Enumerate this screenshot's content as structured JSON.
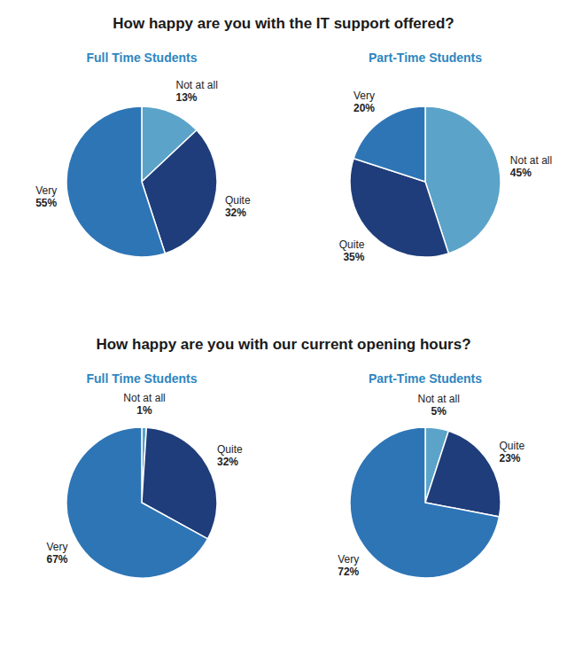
{
  "chart_data": [
    {
      "type": "pie",
      "title": "How happy are you with the IT support offered?",
      "subtitle": "Full Time Students",
      "categories": [
        "Not at all",
        "Quite",
        "Very"
      ],
      "values": [
        13,
        32,
        55
      ],
      "value_labels": [
        "13%",
        "32%",
        "55%"
      ],
      "colors": [
        "#5BA3C9",
        "#1F3D7A",
        "#2E75B6"
      ],
      "data_labels": true
    },
    {
      "type": "pie",
      "subtitle": "Part-Time Students",
      "categories": [
        "Not at all",
        "Quite",
        "Very"
      ],
      "values": [
        45,
        35,
        20
      ],
      "value_labels": [
        "45%",
        "35%",
        "20%"
      ],
      "colors": [
        "#5BA3C9",
        "#1F3D7A",
        "#2E75B6"
      ],
      "data_labels": true
    },
    {
      "type": "pie",
      "title": "How happy are you with our current opening hours?",
      "subtitle": "Full Time Students",
      "categories": [
        "Not at all",
        "Quite",
        "Very"
      ],
      "values": [
        1,
        32,
        67
      ],
      "value_labels": [
        "1%",
        "32%",
        "67%"
      ],
      "colors": [
        "#5BA3C9",
        "#1F3D7A",
        "#2E75B6"
      ],
      "data_labels": true
    },
    {
      "type": "pie",
      "subtitle": "Part-Time Students",
      "categories": [
        "Not at all",
        "Quite",
        "Very"
      ],
      "values": [
        5,
        23,
        72
      ],
      "value_labels": [
        "5%",
        "23%",
        "72%"
      ],
      "colors": [
        "#5BA3C9",
        "#1F3D7A",
        "#2E75B6"
      ],
      "data_labels": true
    }
  ]
}
